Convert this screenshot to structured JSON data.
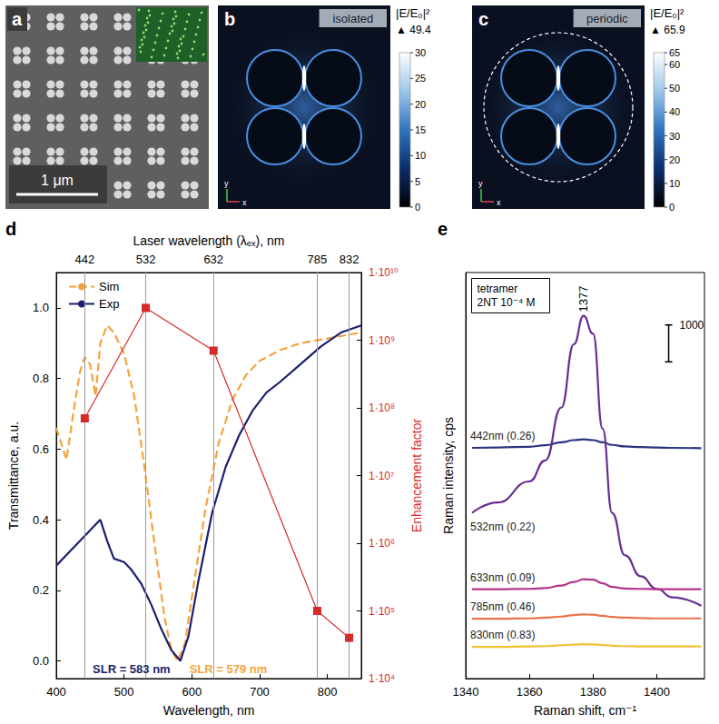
{
  "figure_panels": {
    "a": {
      "letter": "a",
      "scale_bar": "1 μm"
    },
    "b": {
      "letter": "b",
      "tag": "isolated",
      "axes": [
        "x",
        "y"
      ],
      "colorbar": {
        "title": "|E/E₀|²",
        "max_label": "▲ 49.4",
        "range": [
          0,
          30
        ],
        "ticks": [
          0,
          5,
          10,
          15,
          20,
          25,
          30
        ]
      }
    },
    "c": {
      "letter": "c",
      "tag": "periodic",
      "axes": [
        "x",
        "y"
      ],
      "colorbar": {
        "title": "|E/E₀|²",
        "max_label": "▲ 65.9",
        "range": [
          0,
          65
        ],
        "ticks": [
          0,
          10,
          20,
          30,
          40,
          50,
          60,
          65
        ]
      }
    }
  },
  "chart_data": [
    {
      "type": "line",
      "letter": "d",
      "x_label": "Wavelength, nm",
      "y_label": "Transmittance, a.u.",
      "x2_label": "Laser wavelength (λₑₓ), nm",
      "y2_label": "Enhancement factor",
      "xlim": [
        400,
        850
      ],
      "xticks": [
        400,
        500,
        600,
        700,
        800
      ],
      "x2lim": [
        400,
        850
      ],
      "x2ticks": [
        442,
        532,
        632,
        785,
        832
      ],
      "ylim": [
        -0.05,
        1.1
      ],
      "yticks": [
        {
          "value": 0,
          "label": "0.0"
        },
        0.2,
        0.4,
        0.6,
        0.8,
        {
          "value": 1,
          "label": "1.0"
        }
      ],
      "y2lim": [
        10000,
        10000000000
      ],
      "y2ticks": [
        {
          "value": 10000,
          "label": "1·10⁴"
        },
        {
          "value": 100000,
          "label": "1·10⁵"
        },
        {
          "value": 1000000,
          "label": "1·10⁶"
        },
        {
          "value": 10000000,
          "label": "1·10⁷"
        },
        {
          "value": 100000000,
          "label": "1·10⁸"
        },
        {
          "value": 1000000000,
          "label": "1·10⁹"
        },
        {
          "value": 10000000000,
          "label": "1·10¹⁰"
        }
      ],
      "log": "y2",
      "grid": "x2",
      "legend": "upper left",
      "series": [
        {
          "name": "Sim",
          "color": "#f5a33b",
          "line_style": "dashed",
          "x": [
            400,
            410,
            415,
            425,
            435,
            442,
            450,
            458,
            465,
            475,
            485,
            500,
            515,
            530,
            545,
            560,
            570,
            579,
            590,
            600,
            620,
            640,
            660,
            680,
            700,
            730,
            760,
            790,
            820,
            850
          ],
          "values": [
            0.66,
            0.6,
            0.57,
            0.7,
            0.82,
            0.86,
            0.84,
            0.75,
            0.9,
            0.95,
            0.93,
            0.87,
            0.75,
            0.55,
            0.33,
            0.12,
            0.03,
            0.0,
            0.05,
            0.18,
            0.43,
            0.62,
            0.74,
            0.81,
            0.85,
            0.88,
            0.9,
            0.91,
            0.92,
            0.93
          ]
        },
        {
          "name": "Exp",
          "color": "#1b1f6e",
          "line_style": "solid",
          "x": [
            400,
            420,
            440,
            455,
            465,
            475,
            485,
            500,
            510,
            525,
            540,
            555,
            570,
            583,
            595,
            610,
            630,
            650,
            670,
            690,
            710,
            730,
            760,
            790,
            820,
            850
          ],
          "values": [
            0.27,
            0.31,
            0.35,
            0.38,
            0.4,
            0.34,
            0.29,
            0.28,
            0.26,
            0.22,
            0.16,
            0.09,
            0.03,
            0.0,
            0.07,
            0.23,
            0.42,
            0.55,
            0.64,
            0.71,
            0.76,
            0.79,
            0.84,
            0.89,
            0.93,
            0.95
          ]
        },
        {
          "axis": "y2",
          "color": "#d42a2a",
          "marker": "square",
          "line_style": "solid",
          "x": [
            442,
            532,
            632,
            785,
            832
          ],
          "values": [
            70000000,
            3000000000,
            700000000,
            100000,
            40000
          ]
        }
      ],
      "annotations": [
        {
          "text": "SLR = 583 nm",
          "x": 583,
          "series": "Exp"
        },
        {
          "text": "SLR = 579 nm",
          "x": 579,
          "series": "Sim"
        }
      ]
    },
    {
      "type": "line",
      "letter": "e",
      "x_label": "Raman shift, cm⁻¹",
      "y_label": "Raman intensity, cps",
      "xlim": [
        1340,
        1415
      ],
      "xticks": [
        1340,
        1360,
        1380,
        1400
      ],
      "ylim": [
        0,
        11000
      ],
      "tick_labels": "x",
      "box_text": [
        "tetramer",
        "2NT 10⁻⁴ M"
      ],
      "scale_bar": 1000,
      "annotations": [
        {
          "text": "1377",
          "x": 1377
        }
      ],
      "x": [
        1342,
        1350,
        1360,
        1365,
        1370,
        1374,
        1377,
        1380,
        1383,
        1386,
        1390,
        1395,
        1400,
        1405,
        1414
      ],
      "series": [
        {
          "name": "442nm (0.26)",
          "color": "#2a3580",
          "values": [
            6250,
            6260,
            6280,
            6320,
            6400,
            6460,
            6480,
            6460,
            6400,
            6330,
            6290,
            6270,
            6260,
            6250,
            6240
          ]
        },
        {
          "name": "532nm (0.22)",
          "color": "#6b2d93",
          "values": [
            4490,
            4770,
            5340,
            5910,
            7340,
            9060,
            9830,
            9340,
            6770,
            4490,
            3340,
            2770,
            2430,
            2200,
            1970
          ]
        },
        {
          "name": "633nm (0.09)",
          "color": "#b3358d",
          "values": [
            2420,
            2420,
            2430,
            2450,
            2520,
            2620,
            2690,
            2680,
            2580,
            2480,
            2440,
            2430,
            2420,
            2420,
            2420
          ]
        },
        {
          "name": "785nm (0.46)",
          "color": "#e8744a",
          "values": [
            1620,
            1620,
            1630,
            1650,
            1680,
            1720,
            1740,
            1730,
            1700,
            1670,
            1650,
            1640,
            1630,
            1630,
            1630
          ]
        },
        {
          "name": "830nm (0.83)",
          "color": "#f1c232",
          "values": [
            860,
            860,
            870,
            880,
            900,
            920,
            930,
            925,
            910,
            890,
            880,
            870,
            870,
            870,
            870
          ]
        }
      ]
    }
  ]
}
